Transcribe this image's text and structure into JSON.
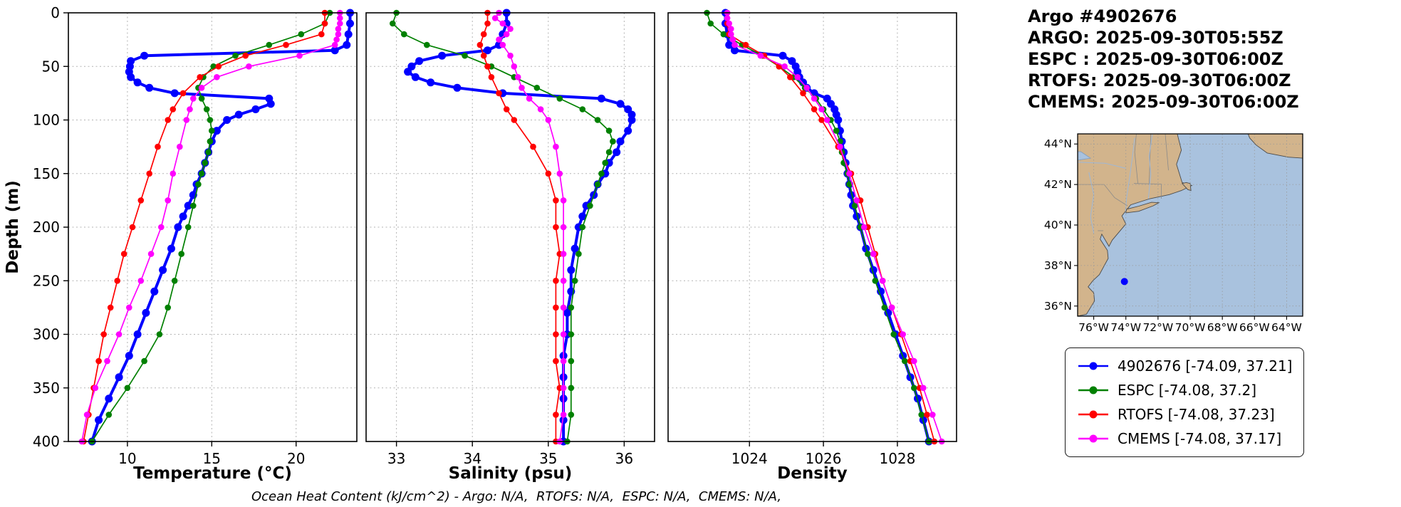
{
  "header": {
    "title": "Argo #4902676",
    "lines": [
      "ARGO: 2025-09-30T05:55Z",
      "ESPC : 2025-09-30T06:00Z",
      "RTOFS: 2025-09-30T06:00Z",
      "CMEMS: 2025-09-30T06:00Z"
    ]
  },
  "footer": "Ocean Heat Content (kJ/cm^2) - Argo: N/A,  RTOFS: N/A,  ESPC: N/A,  CMEMS: N/A,",
  "colors": {
    "argo": "#0000ff",
    "espc": "#008000",
    "rtofs": "#ff0000",
    "cmems": "#ff00ff",
    "land": "#d2b48c",
    "ocean": "#a9c2de",
    "grid": "#b3b3b3"
  },
  "legend": {
    "entries": [
      {
        "label": "4902676 [-74.09, 37.21]",
        "color_key": "argo"
      },
      {
        "label": "ESPC [-74.08, 37.2]",
        "color_key": "espc"
      },
      {
        "label": "RTOFS [-74.08, 37.23]",
        "color_key": "rtofs"
      },
      {
        "label": "CMEMS [-74.08, 37.17]",
        "color_key": "cmems"
      }
    ]
  },
  "map": {
    "extent": {
      "lon": [
        -77,
        -63
      ],
      "lat": [
        35.5,
        44.5
      ]
    },
    "float": {
      "lon": -74.09,
      "lat": 37.21
    },
    "lat_ticks": [
      {
        "v": 44,
        "label": "44°N"
      },
      {
        "v": 42,
        "label": "42°N"
      },
      {
        "v": 40,
        "label": "40°N"
      },
      {
        "v": 38,
        "label": "38°N"
      },
      {
        "v": 36,
        "label": "36°N"
      }
    ],
    "lon_ticks": [
      {
        "v": -76,
        "label": "76°W"
      },
      {
        "v": -74,
        "label": "74°W"
      },
      {
        "v": -72,
        "label": "72°W"
      },
      {
        "v": -70,
        "label": "70°W"
      },
      {
        "v": -68,
        "label": "68°W"
      },
      {
        "v": -66,
        "label": "66°W"
      },
      {
        "v": -64,
        "label": "64°W"
      }
    ]
  },
  "chart_data": {
    "type": "line",
    "description": "Vertical ocean profiles (depth increasing downward) comparing Argo float 4902676 with ESPC, RTOFS and CMEMS model fields",
    "ylabel": "Depth (m)",
    "ylim": [
      0,
      400
    ],
    "yticks": [
      0,
      50,
      100,
      150,
      200,
      250,
      300,
      350,
      400
    ],
    "grid": true,
    "panels": [
      {
        "key": "temperature",
        "xlabel": "Temperature (°C)",
        "xlim": [
          6.5,
          23.6
        ],
        "xticks": [
          10,
          15,
          20
        ]
      },
      {
        "key": "salinity",
        "xlabel": "Salinity (psu)",
        "xlim": [
          32.6,
          36.4
        ],
        "xticks": [
          33,
          34,
          35,
          36
        ]
      },
      {
        "key": "density",
        "xlabel": "Density",
        "xlim": [
          1021.8,
          1029.6
        ],
        "xticks": [
          1024,
          1026,
          1028
        ]
      }
    ],
    "series": [
      {
        "name": "4902676",
        "color_key": "argo",
        "depth": [
          0,
          10,
          20,
          30,
          35,
          40,
          45,
          50,
          55,
          60,
          65,
          70,
          75,
          80,
          85,
          90,
          95,
          100,
          110,
          120,
          130,
          140,
          150,
          160,
          170,
          180,
          190,
          200,
          220,
          240,
          260,
          280,
          300,
          320,
          340,
          360,
          380,
          400
        ],
        "temperature": [
          23.2,
          23.2,
          23.1,
          23.0,
          22.3,
          11.0,
          10.2,
          10.15,
          10.1,
          10.2,
          10.6,
          11.3,
          12.8,
          18.4,
          18.5,
          17.6,
          16.6,
          15.9,
          15.3,
          15.0,
          14.8,
          14.6,
          14.4,
          14.1,
          13.9,
          13.6,
          13.3,
          13.0,
          12.6,
          12.1,
          11.6,
          11.1,
          10.6,
          10.1,
          9.5,
          8.9,
          8.3,
          7.9
        ],
        "salinity": [
          34.45,
          34.45,
          34.4,
          34.35,
          34.2,
          33.6,
          33.3,
          33.2,
          33.15,
          33.25,
          33.45,
          33.8,
          34.4,
          35.7,
          35.95,
          36.05,
          36.1,
          36.1,
          36.05,
          35.95,
          35.9,
          35.8,
          35.75,
          35.65,
          35.6,
          35.5,
          35.45,
          35.4,
          35.35,
          35.3,
          35.3,
          35.25,
          35.25,
          35.2,
          35.2,
          35.2,
          35.2,
          35.2
        ],
        "density": [
          1023.35,
          1023.35,
          1023.4,
          1023.45,
          1023.6,
          1024.9,
          1025.15,
          1025.25,
          1025.3,
          1025.35,
          1025.45,
          1025.55,
          1025.75,
          1026.1,
          1026.2,
          1026.3,
          1026.35,
          1026.4,
          1026.45,
          1026.5,
          1026.55,
          1026.6,
          1026.65,
          1026.7,
          1026.75,
          1026.8,
          1026.9,
          1027.0,
          1027.15,
          1027.35,
          1027.55,
          1027.75,
          1027.95,
          1028.15,
          1028.35,
          1028.55,
          1028.7,
          1028.85
        ]
      },
      {
        "name": "ESPC",
        "color_key": "espc",
        "depth": [
          0,
          10,
          20,
          30,
          40,
          50,
          60,
          70,
          80,
          90,
          100,
          110,
          120,
          130,
          140,
          150,
          160,
          180,
          200,
          225,
          250,
          275,
          300,
          325,
          350,
          375,
          400
        ],
        "temperature": [
          22.0,
          21.7,
          20.3,
          18.4,
          16.4,
          15.1,
          14.5,
          14.2,
          14.4,
          14.7,
          14.9,
          15.0,
          14.9,
          14.8,
          14.6,
          14.4,
          14.2,
          13.9,
          13.6,
          13.2,
          12.8,
          12.4,
          11.9,
          11.0,
          10.0,
          8.9,
          7.9
        ],
        "salinity": [
          33.0,
          32.95,
          33.1,
          33.4,
          33.9,
          34.25,
          34.55,
          34.85,
          35.15,
          35.45,
          35.65,
          35.8,
          35.85,
          35.8,
          35.75,
          35.7,
          35.65,
          35.55,
          35.45,
          35.4,
          35.35,
          35.3,
          35.3,
          35.3,
          35.3,
          35.3,
          35.25
        ],
        "density": [
          1022.85,
          1022.95,
          1023.3,
          1023.8,
          1024.35,
          1024.8,
          1025.2,
          1025.5,
          1025.8,
          1026.0,
          1026.2,
          1026.35,
          1026.45,
          1026.5,
          1026.55,
          1026.65,
          1026.7,
          1026.85,
          1027.0,
          1027.2,
          1027.4,
          1027.65,
          1027.9,
          1028.2,
          1028.45,
          1028.65,
          1028.85
        ]
      },
      {
        "name": "RTOFS",
        "color_key": "rtofs",
        "depth": [
          0,
          10,
          20,
          30,
          40,
          50,
          60,
          75,
          90,
          100,
          125,
          150,
          175,
          200,
          225,
          250,
          275,
          300,
          325,
          350,
          375,
          400
        ],
        "temperature": [
          21.7,
          21.7,
          21.5,
          19.4,
          17.0,
          15.4,
          14.3,
          13.3,
          12.7,
          12.4,
          11.8,
          11.3,
          10.8,
          10.3,
          9.8,
          9.4,
          9.0,
          8.6,
          8.3,
          8.0,
          7.7,
          7.4
        ],
        "salinity": [
          34.2,
          34.2,
          34.15,
          34.1,
          34.15,
          34.2,
          34.25,
          34.35,
          34.45,
          34.55,
          34.8,
          35.0,
          35.1,
          35.1,
          35.15,
          35.1,
          35.1,
          35.1,
          35.1,
          35.15,
          35.1,
          35.1
        ],
        "density": [
          1023.4,
          1023.4,
          1023.45,
          1023.9,
          1024.4,
          1024.8,
          1025.1,
          1025.45,
          1025.75,
          1025.95,
          1026.4,
          1026.75,
          1027.0,
          1027.2,
          1027.4,
          1027.6,
          1027.85,
          1028.1,
          1028.35,
          1028.6,
          1028.8,
          1029.0
        ]
      },
      {
        "name": "CMEMS",
        "color_key": "cmems",
        "depth": [
          0,
          5,
          10,
          15,
          20,
          25,
          30,
          40,
          50,
          60,
          70,
          80,
          90,
          100,
          125,
          150,
          175,
          200,
          225,
          250,
          275,
          300,
          325,
          350,
          375,
          400
        ],
        "temperature": [
          22.6,
          22.6,
          22.6,
          22.5,
          22.5,
          22.4,
          22.3,
          20.2,
          17.2,
          15.3,
          14.4,
          13.9,
          13.7,
          13.5,
          13.1,
          12.7,
          12.4,
          12.0,
          11.4,
          10.8,
          10.1,
          9.5,
          8.8,
          8.1,
          7.6,
          7.3
        ],
        "salinity": [
          34.35,
          34.3,
          34.4,
          34.5,
          34.45,
          34.35,
          34.4,
          34.5,
          34.55,
          34.6,
          34.65,
          34.75,
          34.9,
          35.0,
          35.1,
          35.15,
          35.2,
          35.2,
          35.2,
          35.2,
          35.2,
          35.2,
          35.2,
          35.2,
          35.2,
          35.15
        ],
        "density": [
          1023.4,
          1023.4,
          1023.45,
          1023.5,
          1023.5,
          1023.55,
          1023.6,
          1024.3,
          1024.95,
          1025.3,
          1025.55,
          1025.75,
          1025.95,
          1026.1,
          1026.45,
          1026.7,
          1026.9,
          1027.1,
          1027.35,
          1027.6,
          1027.85,
          1028.15,
          1028.45,
          1028.7,
          1028.95,
          1029.2
        ]
      }
    ]
  }
}
